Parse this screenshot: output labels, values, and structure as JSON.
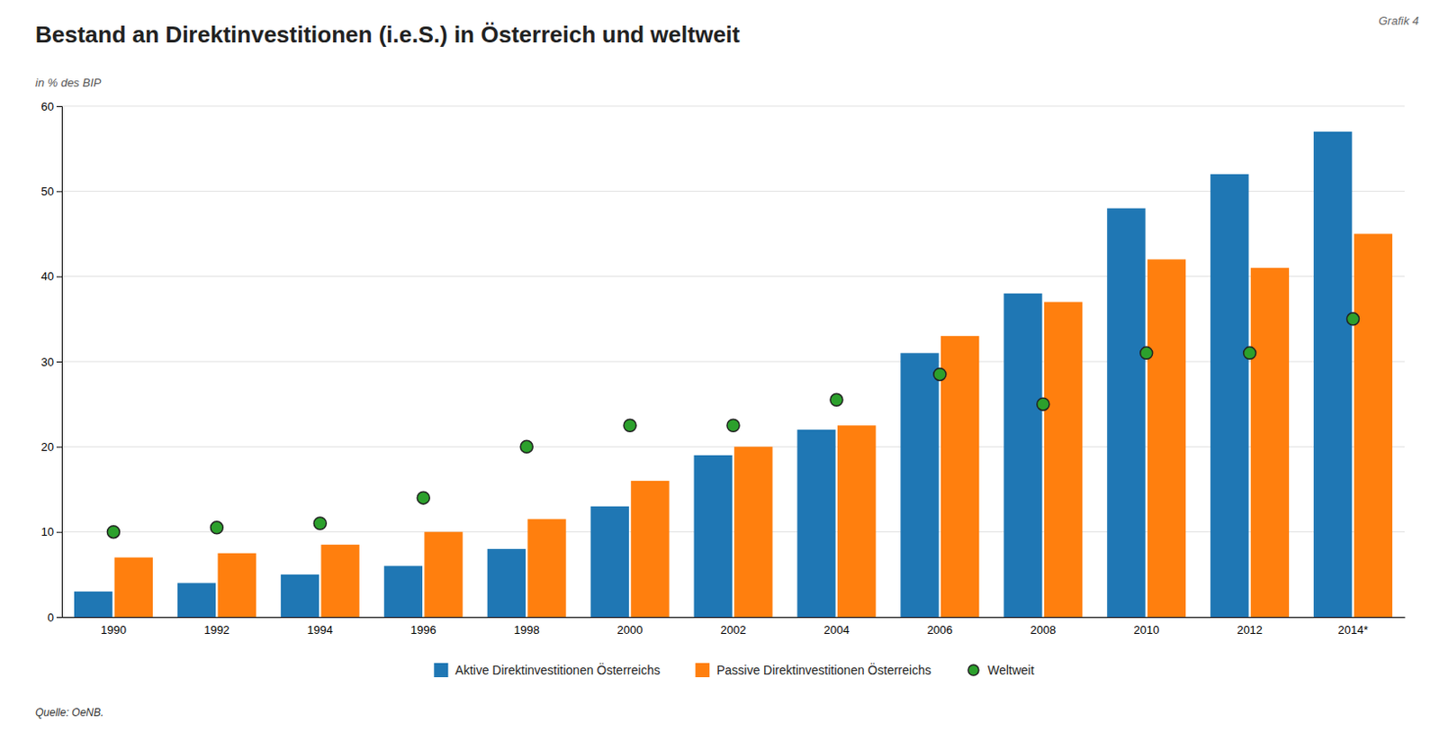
{
  "chart_data": {
    "type": "bar",
    "title": "Bestand an Direktinvestitionen (i.e.S.) in Österreich und weltweit",
    "ylabel": "in % des BIP",
    "annotations": [
      "Grafik 4",
      "Quelle: OeNB."
    ],
    "categories": [
      "1990",
      "1992",
      "1994",
      "1996",
      "1998",
      "2000",
      "2002",
      "2004",
      "2006",
      "2008",
      "2010",
      "2012",
      "2014*"
    ],
    "series": [
      {
        "name": "Aktive Direktinvestitionen Österreichs",
        "type": "bar",
        "values": [
          3.0,
          4.0,
          5.0,
          6.0,
          8.0,
          13.0,
          19.0,
          22.0,
          31.0,
          38.0,
          48.0,
          52.0,
          57.0
        ]
      },
      {
        "name": "Passive Direktinvestitionen Österreichs",
        "type": "bar",
        "values": [
          7.0,
          7.5,
          8.5,
          10.0,
          11.5,
          16.0,
          20.0,
          22.5,
          33.0,
          37.0,
          42.0,
          41.0,
          45.0
        ]
      },
      {
        "name": "Weltweit",
        "type": "scatter",
        "marker": "circle",
        "values": [
          10.0,
          10.5,
          11.0,
          14.0,
          20.0,
          22.5,
          22.5,
          25.5,
          28.5,
          25.0,
          31.0,
          31.0,
          35.0
        ]
      }
    ],
    "ylim": [
      0,
      60
    ],
    "yticks": [
      0,
      10,
      20,
      30,
      40,
      50,
      60
    ],
    "grid": true,
    "legend": "bottom"
  }
}
